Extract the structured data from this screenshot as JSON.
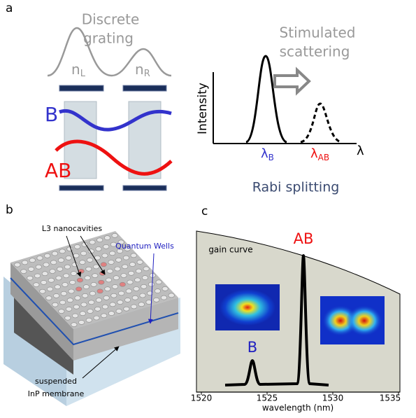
{
  "panel_labels": [
    "a",
    "b",
    "c"
  ],
  "panel_a": {
    "grating_title": [
      "Discrete",
      "grating"
    ],
    "n_left": {
      "base": "n",
      "sub": "L"
    },
    "n_right": {
      "base": "n",
      "sub": "R"
    },
    "mode_b": "B",
    "mode_ab": "AB",
    "process": [
      "Stimulated",
      "scattering"
    ],
    "y_axis": "Intensity",
    "lambda_b": {
      "base": "λ",
      "sub": "B"
    },
    "lambda_ab": {
      "base": "λ",
      "sub": "AB"
    },
    "x_axis": "λ",
    "caption": "Rabi splitting"
  },
  "panel_b": {
    "cavities": "L3 nanocavities",
    "wells": "Quantum Wells",
    "membrane": [
      "suspended",
      "InP membrane"
    ]
  },
  "panel_c": {
    "peak_ab": "AB",
    "peak_b": "B",
    "curve": "gain curve",
    "xticks": [
      1520,
      1525,
      1530,
      1535
    ],
    "x_axis": "wavelength (nm)"
  }
}
